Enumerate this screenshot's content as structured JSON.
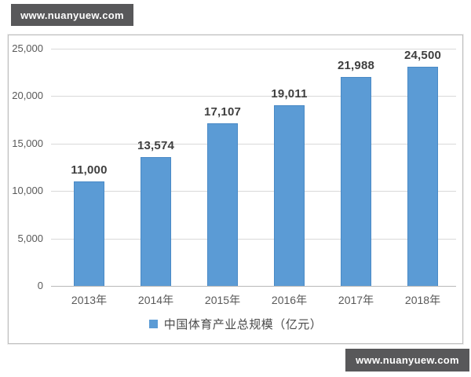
{
  "watermark": {
    "text": "www.nuanyuew.com"
  },
  "colors": {
    "bar_fill": "#5B9BD5",
    "bar_border": "#4A8AC6",
    "gridline": "#D9D9D9",
    "axis_line": "#B8B8B8",
    "data_label": "#3F3F3F",
    "tick_label": "#595959",
    "legend_text": "#4A4A4A",
    "watermark_bg": "#58585A",
    "watermark_text": "#FFFFFF",
    "frame_border": "#BDBDBD"
  },
  "chart_data": {
    "type": "bar",
    "title": "",
    "xlabel": "",
    "ylabel": "",
    "legend": "中国体育产业总规模（亿元）",
    "legend_position": "bottom",
    "grid": true,
    "categories": [
      "2013年",
      "2014年",
      "2015年",
      "2016年",
      "2017年",
      "2018年"
    ],
    "values": [
      11000,
      13574,
      17107,
      19011,
      21988,
      24500
    ],
    "value_labels": [
      "11,000",
      "13,574",
      "17,107",
      "19,011",
      "21,988",
      "24,500"
    ],
    "ylim": [
      0,
      25000
    ],
    "ytick_interval": 5000,
    "yticks": [
      {
        "value": 0,
        "label": "0"
      },
      {
        "value": 5000,
        "label": "5,000"
      },
      {
        "value": 10000,
        "label": "10,000"
      },
      {
        "value": 15000,
        "label": "15,000"
      },
      {
        "value": 20000,
        "label": "20,000"
      },
      {
        "value": 25000,
        "label": "25,000"
      }
    ]
  }
}
